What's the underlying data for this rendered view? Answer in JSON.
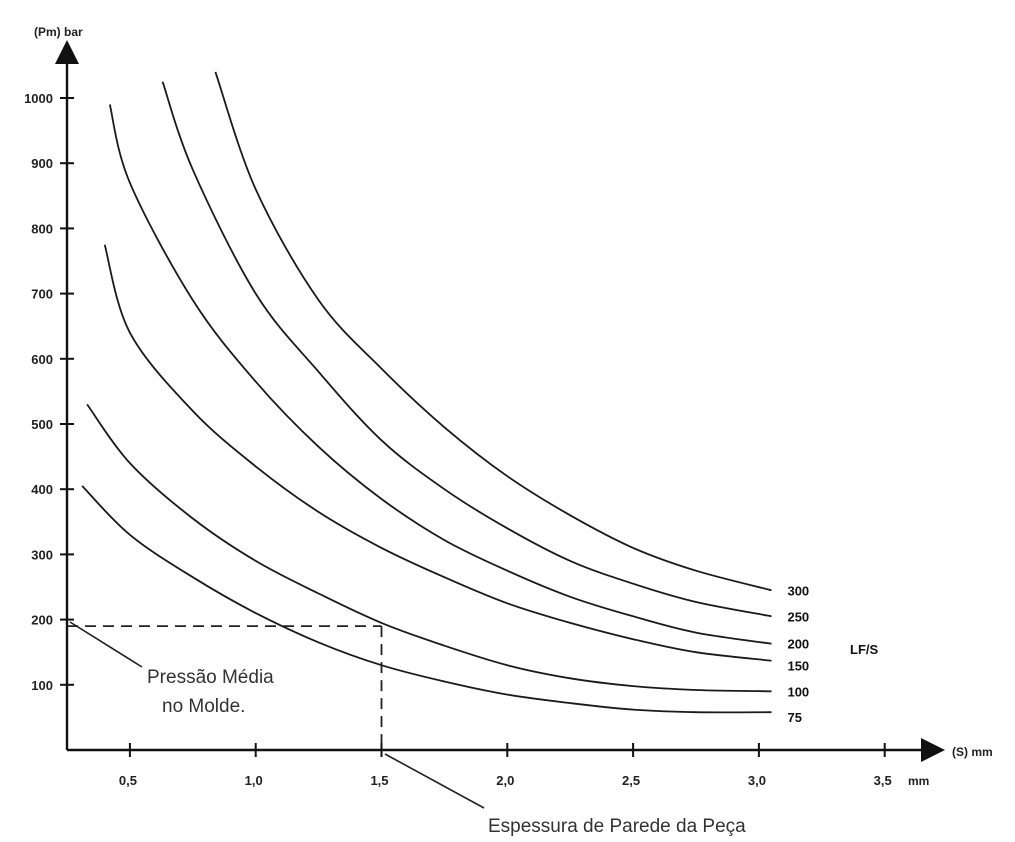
{
  "chart_data": {
    "type": "line",
    "title": "",
    "ylabel": "(Pm) bar",
    "xlabel": "(S) mm",
    "x_unit_label": "mm",
    "xlim": [
      0.25,
      3.7
    ],
    "ylim": [
      0,
      1080
    ],
    "x_ticks": [
      {
        "value": 0.5,
        "label": "0,5"
      },
      {
        "value": 1.0,
        "label": "1,0"
      },
      {
        "value": 1.5,
        "label": "1,5"
      },
      {
        "value": 2.0,
        "label": "2,0"
      },
      {
        "value": 2.5,
        "label": "2,5"
      },
      {
        "value": 3.0,
        "label": "3,0"
      },
      {
        "value": 3.5,
        "label": "3,5"
      }
    ],
    "y_ticks": [
      {
        "value": 100,
        "label": "100"
      },
      {
        "value": 200,
        "label": "200"
      },
      {
        "value": 300,
        "label": "300"
      },
      {
        "value": 400,
        "label": "400"
      },
      {
        "value": 500,
        "label": "500"
      },
      {
        "value": 600,
        "label": "600"
      },
      {
        "value": 700,
        "label": "700"
      },
      {
        "value": 800,
        "label": "800"
      },
      {
        "value": 900,
        "label": "900"
      },
      {
        "value": 1000,
        "label": "1000"
      }
    ],
    "legend_title": "LF/S",
    "series": [
      {
        "name": "75",
        "x": [
          0.31,
          0.5,
          0.75,
          1.0,
          1.25,
          1.5,
          1.75,
          2.0,
          2.25,
          2.5,
          2.75,
          3.05
        ],
        "y": [
          405,
          330,
          265,
          210,
          165,
          130,
          105,
          85,
          72,
          62,
          58,
          58
        ]
      },
      {
        "name": "100",
        "x": [
          0.33,
          0.5,
          0.75,
          1.0,
          1.25,
          1.5,
          1.75,
          2.0,
          2.25,
          2.5,
          2.75,
          3.05
        ],
        "y": [
          530,
          440,
          355,
          290,
          240,
          195,
          160,
          130,
          110,
          98,
          92,
          90
        ]
      },
      {
        "name": "150",
        "x": [
          0.4,
          0.5,
          0.75,
          1.0,
          1.25,
          1.5,
          1.75,
          2.0,
          2.25,
          2.5,
          2.75,
          3.05
        ],
        "y": [
          775,
          640,
          520,
          435,
          365,
          310,
          265,
          225,
          195,
          170,
          150,
          137
        ]
      },
      {
        "name": "200",
        "x": [
          0.42,
          0.5,
          0.75,
          1.0,
          1.25,
          1.5,
          1.75,
          2.0,
          2.25,
          2.5,
          2.75,
          3.05
        ],
        "y": [
          990,
          870,
          690,
          565,
          465,
          385,
          322,
          275,
          235,
          205,
          180,
          163
        ]
      },
      {
        "name": "250",
        "x": [
          0.63,
          0.75,
          1.0,
          1.25,
          1.5,
          1.75,
          2.0,
          2.25,
          2.5,
          2.75,
          3.05
        ],
        "y": [
          1025,
          890,
          700,
          580,
          475,
          400,
          340,
          290,
          255,
          227,
          205
        ]
      },
      {
        "name": "300",
        "x": [
          0.84,
          1.0,
          1.25,
          1.5,
          1.75,
          2.0,
          2.25,
          2.5,
          2.75,
          3.05
        ],
        "y": [
          1040,
          860,
          690,
          585,
          495,
          420,
          360,
          310,
          275,
          245
        ]
      }
    ],
    "reference_lines": {
      "x": 1.5,
      "y": 190
    },
    "annotations": {
      "pressure": [
        "Pressão Média",
        "no Molde."
      ],
      "thickness": "Espessura de Parede da Peça"
    },
    "grid": false
  }
}
